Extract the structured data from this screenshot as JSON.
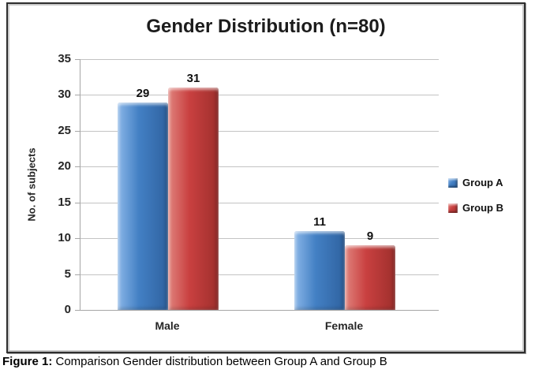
{
  "figure": {
    "caption_bold": "Figure 1:",
    "caption_text": " Comparison Gender distribution between Group A and Group B"
  },
  "chart_data": {
    "type": "bar",
    "title": "Gender Distribution (n=80)",
    "categories": [
      "Male",
      "Female"
    ],
    "series": [
      {
        "name": "Group A",
        "values": [
          29,
          11
        ],
        "color": "#4380C4",
        "color_light": "#8AB6E8",
        "color_dark": "#2F62A0"
      },
      {
        "name": "Group B",
        "values": [
          31,
          9
        ],
        "color": "#C94040",
        "color_light": "#E0837D",
        "color_dark": "#9E2F2C"
      }
    ],
    "xlabel": "",
    "ylabel": "No. of subjects",
    "ylim": [
      0,
      35
    ],
    "yticks": [
      0,
      5,
      10,
      15,
      20,
      25,
      30,
      35
    ],
    "grid": true,
    "legend_position": "right",
    "data_labels_shown": true
  }
}
